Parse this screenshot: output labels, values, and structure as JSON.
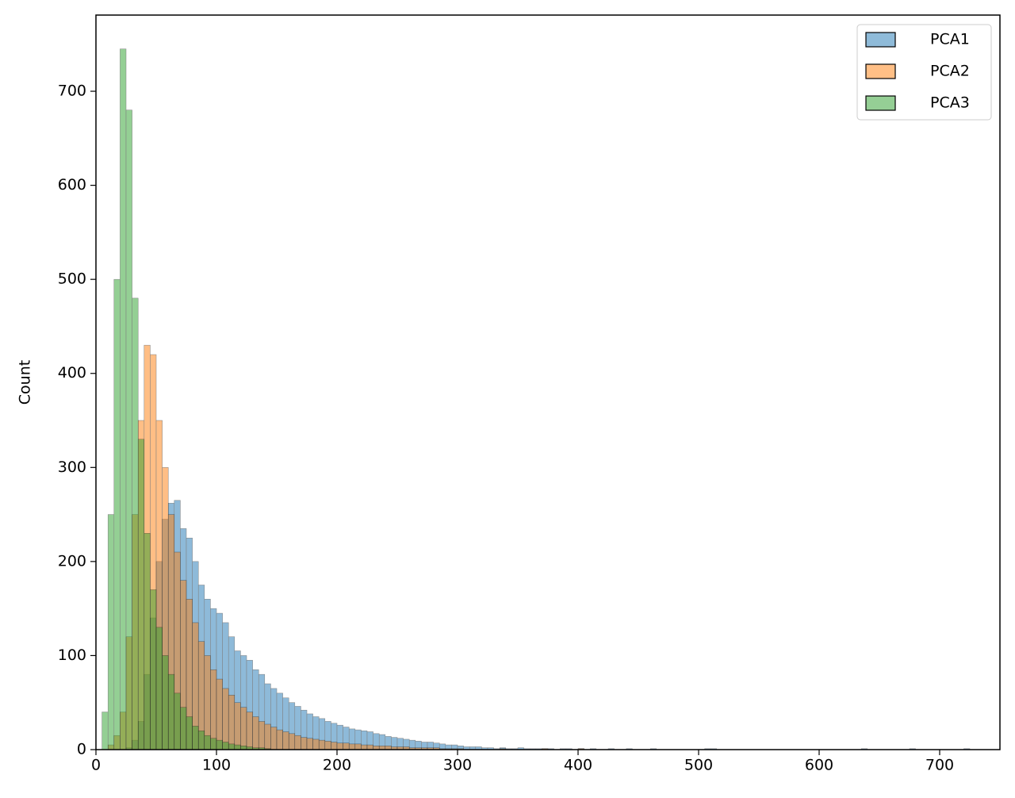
{
  "chart_data": {
    "type": "histogram",
    "y_label": "Count",
    "xlim": [
      0,
      750
    ],
    "xticks": [
      0,
      100,
      200,
      300,
      400,
      500,
      600,
      700
    ],
    "ylim": [
      0,
      781
    ],
    "yticks": [
      0,
      100,
      200,
      300,
      400,
      500,
      600,
      700
    ],
    "legend_position": "upper right",
    "bins": [
      5,
      10,
      15,
      20,
      25,
      30,
      35,
      40,
      45,
      50,
      55,
      60,
      65,
      70,
      75,
      80,
      85,
      90,
      95,
      100,
      105,
      110,
      115,
      120,
      125,
      130,
      135,
      140,
      145,
      150,
      155,
      160,
      165,
      170,
      175,
      180,
      185,
      190,
      195,
      200,
      205,
      210,
      215,
      220,
      225,
      230,
      235,
      240,
      245,
      250,
      255,
      260,
      265,
      270,
      275,
      280,
      285,
      290,
      295,
      300,
      305,
      310,
      315,
      320,
      325,
      330,
      335,
      340,
      345,
      350,
      355,
      360,
      365,
      370,
      375,
      380,
      385,
      390,
      395,
      400,
      405,
      410,
      415,
      420,
      425,
      430,
      435,
      440,
      445,
      450,
      455,
      460,
      465,
      470,
      475,
      480,
      485,
      490,
      495,
      500,
      505,
      510,
      515,
      520,
      525,
      530,
      535,
      540,
      545,
      550,
      555,
      560,
      565,
      570,
      575,
      580,
      585,
      590,
      595,
      600,
      605,
      610,
      615,
      620,
      625,
      630,
      635,
      640,
      645,
      650,
      655,
      660,
      665,
      670,
      675,
      680,
      685,
      690,
      695,
      700,
      705,
      710,
      715,
      720,
      725
    ],
    "series": [
      {
        "name": "PCA1",
        "color": "#1f77b4",
        "values": [
          0,
          0,
          0,
          0,
          2,
          10,
          30,
          80,
          140,
          200,
          245,
          262,
          265,
          235,
          225,
          200,
          175,
          160,
          150,
          145,
          135,
          120,
          105,
          100,
          95,
          85,
          80,
          70,
          65,
          60,
          55,
          50,
          46,
          42,
          38,
          35,
          33,
          30,
          28,
          26,
          24,
          22,
          21,
          20,
          19,
          17,
          16,
          14,
          13,
          12,
          11,
          10,
          9,
          8,
          8,
          7,
          6,
          5,
          5,
          4,
          3,
          3,
          3,
          2,
          2,
          1,
          2,
          1,
          1,
          2,
          1,
          1,
          1,
          1,
          1,
          0,
          1,
          1,
          0,
          1,
          0,
          1,
          0,
          0,
          1,
          0,
          0,
          1,
          0,
          0,
          0,
          1,
          0,
          0,
          0,
          0,
          0,
          0,
          0,
          0,
          1,
          1,
          0,
          0,
          0,
          0,
          0,
          0,
          0,
          0,
          0,
          0,
          0,
          0,
          0,
          0,
          0,
          0,
          0,
          0,
          0,
          0,
          0,
          0,
          0,
          0,
          1,
          0,
          0,
          0,
          0,
          0,
          0,
          0,
          1,
          0,
          0,
          0,
          0,
          0,
          0,
          0,
          0,
          1
        ]
      },
      {
        "name": "PCA2",
        "color": "#ff7f0e",
        "values": [
          0,
          5,
          15,
          40,
          120,
          250,
          350,
          430,
          420,
          350,
          300,
          250,
          210,
          180,
          160,
          135,
          115,
          100,
          85,
          75,
          65,
          58,
          50,
          45,
          40,
          35,
          30,
          27,
          24,
          21,
          19,
          17,
          15,
          13,
          12,
          11,
          10,
          9,
          8,
          7,
          7,
          6,
          6,
          5,
          5,
          4,
          4,
          4,
          3,
          3,
          3,
          2,
          2,
          2,
          2,
          2,
          1,
          1,
          1,
          1,
          0,
          0,
          0,
          0,
          0,
          0,
          1,
          0,
          0,
          0,
          0,
          0,
          0,
          1,
          0,
          0,
          0,
          0,
          0,
          1,
          0,
          0,
          0,
          0,
          0,
          0,
          0,
          0,
          0,
          0,
          0,
          0,
          0,
          0,
          0,
          0,
          0,
          0,
          0,
          0,
          0,
          0,
          0,
          0,
          0,
          0,
          0,
          0,
          0,
          0,
          0,
          0,
          0,
          0,
          0,
          0,
          0,
          0,
          0,
          0,
          0,
          0,
          0,
          0,
          0,
          0,
          0,
          0,
          0,
          0,
          0,
          0,
          0,
          0,
          0,
          0,
          0,
          0,
          0,
          0,
          0,
          0,
          0,
          0
        ]
      },
      {
        "name": "PCA3",
        "color": "#2ca02c",
        "values": [
          40,
          250,
          500,
          745,
          680,
          480,
          330,
          230,
          170,
          130,
          100,
          80,
          60,
          45,
          35,
          25,
          20,
          15,
          12,
          10,
          8,
          6,
          5,
          4,
          3,
          2,
          2,
          1,
          0,
          0,
          0,
          0,
          0,
          0,
          0,
          0,
          0,
          0,
          0,
          0,
          0,
          0,
          0,
          0,
          0,
          0,
          0,
          0,
          0,
          0,
          0,
          0,
          0,
          0,
          0,
          0,
          0,
          0,
          0,
          0,
          0,
          0,
          0,
          0,
          0,
          0,
          0,
          0,
          0,
          0,
          0,
          0,
          0,
          0,
          0,
          0,
          0,
          0,
          0,
          0,
          0,
          0,
          0,
          0,
          0,
          0,
          0,
          0,
          0,
          0,
          0,
          0,
          0,
          0,
          0,
          0,
          0,
          0,
          0,
          0,
          0,
          0,
          0,
          0,
          0,
          0,
          0,
          0,
          0,
          0,
          0,
          0,
          0,
          0,
          0,
          0,
          0,
          0,
          0,
          0,
          0,
          0,
          0,
          0,
          0,
          0,
          0,
          0,
          0,
          0,
          0,
          0,
          0,
          0,
          0,
          0,
          0,
          0,
          0,
          0,
          0,
          0,
          0,
          0
        ]
      }
    ]
  }
}
